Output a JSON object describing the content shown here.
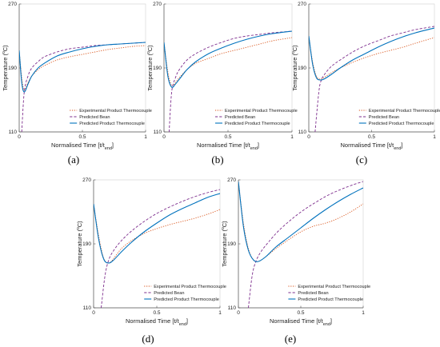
{
  "figure": {
    "panels": [
      {
        "caption": "(a)"
      },
      {
        "caption": "(b)"
      },
      {
        "caption": "(c)"
      },
      {
        "caption": "(d)"
      },
      {
        "caption": "(e)"
      }
    ]
  },
  "chart_data": [
    {
      "type": "line",
      "caption": "(a)",
      "xlabel": "Normalised Time [t/t_end]",
      "ylabel": "Temperature (°C)",
      "xlim": [
        0,
        1
      ],
      "ylim": [
        110,
        270
      ],
      "xticks": [
        "0",
        "0.5",
        "1"
      ],
      "yticks": [
        "110",
        "190",
        "270"
      ],
      "legend_position": "bottom-right",
      "series": [
        {
          "name": "Experimental Product Thermocouple",
          "color": "#d95319",
          "dash": "dot",
          "x": [
            0,
            0.02,
            0.04,
            0.07,
            0.1,
            0.15,
            0.2,
            0.3,
            0.4,
            0.5,
            0.6,
            0.7,
            0.8,
            0.9,
            1.0
          ],
          "y": [
            212,
            178,
            162,
            172,
            180,
            188,
            193,
            200,
            204,
            207,
            210,
            213,
            215,
            217,
            218
          ]
        },
        {
          "name": "Predicted Bean",
          "color": "#7e2f8e",
          "dash": "dash",
          "x": [
            0.02,
            0.04,
            0.07,
            0.1,
            0.15,
            0.2,
            0.3,
            0.4,
            0.5,
            0.6,
            0.7,
            0.8,
            0.9,
            1.0
          ],
          "y": [
            110,
            160,
            180,
            190,
            198,
            204,
            210,
            214,
            216,
            218,
            219,
            220,
            221,
            222
          ]
        },
        {
          "name": "Predicted Product Thermocouple",
          "color": "#0072bd",
          "dash": "solid",
          "x": [
            0,
            0.02,
            0.04,
            0.07,
            0.1,
            0.15,
            0.2,
            0.3,
            0.4,
            0.5,
            0.6,
            0.7,
            0.8,
            0.9,
            1.0
          ],
          "y": [
            212,
            172,
            160,
            170,
            180,
            190,
            196,
            205,
            210,
            214,
            217,
            219,
            220,
            221,
            222
          ]
        }
      ]
    },
    {
      "type": "line",
      "caption": "(b)",
      "xlabel": "Normalised Time [t/t_end]",
      "ylabel": "Temperature (°C)",
      "xlim": [
        0,
        1
      ],
      "ylim": [
        110,
        270
      ],
      "xticks": [
        "0",
        "0.5",
        "1"
      ],
      "yticks": [
        "110",
        "190",
        "270"
      ],
      "legend_position": "bottom-right",
      "series": [
        {
          "name": "Experimental Product Thermocouple",
          "color": "#d95319",
          "dash": "dot",
          "x": [
            0,
            0.03,
            0.06,
            0.09,
            0.12,
            0.18,
            0.25,
            0.35,
            0.45,
            0.55,
            0.65,
            0.75,
            0.85,
            1.0
          ],
          "y": [
            222,
            185,
            168,
            172,
            178,
            188,
            196,
            202,
            208,
            212,
            216,
            220,
            224,
            228
          ]
        },
        {
          "name": "Predicted Bean",
          "color": "#7e2f8e",
          "dash": "dash",
          "x": [
            0.04,
            0.06,
            0.09,
            0.12,
            0.18,
            0.25,
            0.35,
            0.45,
            0.55,
            0.65,
            0.75,
            0.85,
            1.0
          ],
          "y": [
            110,
            160,
            178,
            188,
            200,
            208,
            216,
            222,
            227,
            230,
            232,
            234,
            236
          ]
        },
        {
          "name": "Predicted Product Thermocouple",
          "color": "#0072bd",
          "dash": "solid",
          "x": [
            0,
            0.03,
            0.06,
            0.09,
            0.12,
            0.18,
            0.25,
            0.35,
            0.45,
            0.55,
            0.65,
            0.75,
            0.85,
            1.0
          ],
          "y": [
            222,
            180,
            166,
            170,
            176,
            188,
            198,
            208,
            215,
            221,
            226,
            230,
            233,
            236
          ]
        }
      ]
    },
    {
      "type": "line",
      "caption": "(c)",
      "xlabel": "Normalised Time [t/t_end]",
      "ylabel": "Temperature (°C)",
      "xlim": [
        0,
        1
      ],
      "ylim": [
        110,
        270
      ],
      "xticks": [
        "0",
        "0.5",
        "1"
      ],
      "yticks": [
        "110",
        "190",
        "270"
      ],
      "legend_position": "bottom-right",
      "series": [
        {
          "name": "Experimental Product Thermocouple",
          "color": "#d95319",
          "dash": "dot",
          "x": [
            0,
            0.03,
            0.06,
            0.09,
            0.12,
            0.18,
            0.25,
            0.35,
            0.45,
            0.55,
            0.65,
            0.75,
            0.85,
            1.0
          ],
          "y": [
            230,
            198,
            180,
            176,
            178,
            184,
            190,
            197,
            203,
            208,
            212,
            216,
            221,
            228
          ]
        },
        {
          "name": "Predicted Bean",
          "color": "#7e2f8e",
          "dash": "dash",
          "x": [
            0.05,
            0.08,
            0.1,
            0.13,
            0.18,
            0.25,
            0.35,
            0.45,
            0.55,
            0.65,
            0.75,
            0.85,
            1.0
          ],
          "y": [
            110,
            160,
            175,
            183,
            192,
            200,
            210,
            218,
            224,
            230,
            234,
            238,
            242
          ]
        },
        {
          "name": "Predicted Product Thermocouple",
          "color": "#0072bd",
          "dash": "solid",
          "x": [
            0,
            0.03,
            0.06,
            0.09,
            0.12,
            0.18,
            0.25,
            0.35,
            0.45,
            0.55,
            0.65,
            0.75,
            0.85,
            1.0
          ],
          "y": [
            230,
            195,
            178,
            175,
            176,
            182,
            190,
            200,
            208,
            216,
            223,
            229,
            234,
            240
          ]
        }
      ]
    },
    {
      "type": "line",
      "caption": "(d)",
      "xlabel": "Normalised Time [t/t_end]",
      "ylabel": "Temperature (°C)",
      "xlim": [
        0,
        1
      ],
      "ylim": [
        110,
        270
      ],
      "xticks": [
        "0",
        "0.5",
        "1"
      ],
      "yticks": [
        "110",
        "190",
        "270"
      ],
      "legend_position": "bottom-right",
      "series": [
        {
          "name": "Experimental Product Thermocouple",
          "color": "#d95319",
          "dash": "dot",
          "x": [
            0,
            0.04,
            0.08,
            0.12,
            0.16,
            0.22,
            0.3,
            0.4,
            0.5,
            0.6,
            0.7,
            0.8,
            0.9,
            1.0
          ],
          "y": [
            240,
            200,
            172,
            166,
            172,
            184,
            194,
            203,
            209,
            214,
            218,
            222,
            227,
            233
          ]
        },
        {
          "name": "Predicted Bean",
          "color": "#7e2f8e",
          "dash": "dash",
          "x": [
            0.06,
            0.09,
            0.12,
            0.16,
            0.22,
            0.3,
            0.4,
            0.5,
            0.6,
            0.7,
            0.8,
            0.9,
            1.0
          ],
          "y": [
            110,
            150,
            170,
            182,
            194,
            206,
            218,
            228,
            236,
            243,
            249,
            254,
            258
          ]
        },
        {
          "name": "Predicted Product Thermocouple",
          "color": "#0072bd",
          "dash": "solid",
          "x": [
            0,
            0.04,
            0.08,
            0.12,
            0.16,
            0.22,
            0.3,
            0.4,
            0.5,
            0.6,
            0.7,
            0.8,
            0.9,
            1.0
          ],
          "y": [
            240,
            196,
            171,
            166,
            170,
            180,
            192,
            205,
            216,
            226,
            234,
            241,
            248,
            253
          ]
        }
      ]
    },
    {
      "type": "line",
      "caption": "(e)",
      "xlabel": "Normalised Time [t/t_end]",
      "ylabel": "Temperature (°C)",
      "xlim": [
        0,
        1
      ],
      "ylim": [
        110,
        270
      ],
      "xticks": [
        "0",
        "0.5",
        "1"
      ],
      "yticks": [
        "110",
        "190",
        "270"
      ],
      "legend_position": "bottom-right",
      "series": [
        {
          "name": "Experimental Product Thermocouple",
          "color": "#d95319",
          "dash": "dot",
          "x": [
            0,
            0.04,
            0.08,
            0.12,
            0.16,
            0.22,
            0.3,
            0.4,
            0.5,
            0.6,
            0.7,
            0.8,
            0.9,
            1.0
          ],
          "y": [
            268,
            216,
            184,
            170,
            168,
            174,
            184,
            195,
            205,
            212,
            216,
            222,
            230,
            240
          ]
        },
        {
          "name": "Predicted Bean",
          "color": "#7e2f8e",
          "dash": "dash",
          "x": [
            0.08,
            0.11,
            0.14,
            0.18,
            0.24,
            0.32,
            0.42,
            0.52,
            0.62,
            0.72,
            0.82,
            0.92,
            1.0
          ],
          "y": [
            110,
            150,
            168,
            180,
            192,
            206,
            220,
            232,
            242,
            251,
            258,
            264,
            268
          ]
        },
        {
          "name": "Predicted Product Thermocouple",
          "color": "#0072bd",
          "dash": "solid",
          "x": [
            0,
            0.04,
            0.08,
            0.12,
            0.16,
            0.22,
            0.3,
            0.4,
            0.5,
            0.6,
            0.7,
            0.8,
            0.9,
            1.0
          ],
          "y": [
            268,
            212,
            182,
            170,
            168,
            174,
            186,
            198,
            210,
            222,
            233,
            243,
            252,
            260
          ]
        }
      ]
    }
  ]
}
